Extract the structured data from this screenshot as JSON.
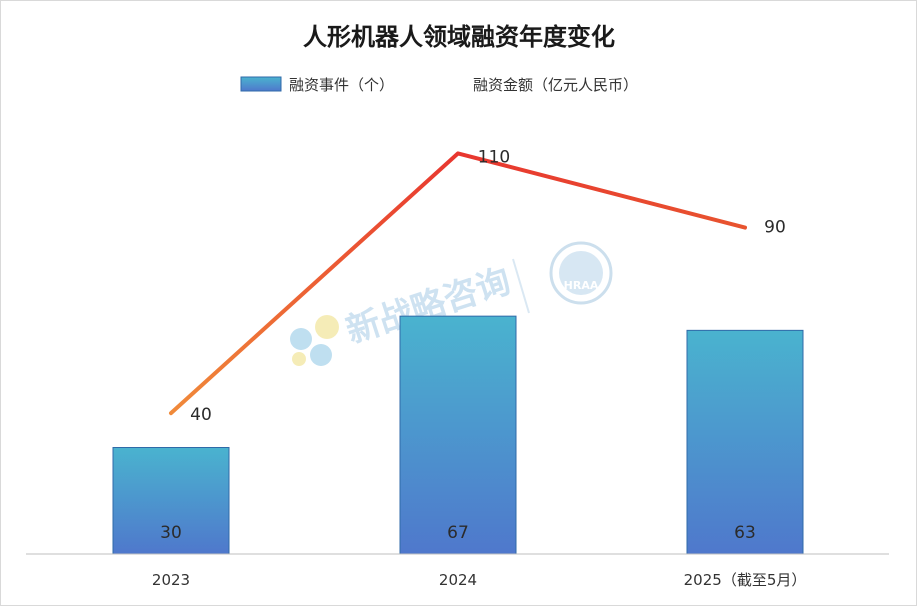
{
  "chart_data": {
    "type": "bar+line",
    "title": "人形机器人领域融资年度变化",
    "categories": [
      "2023",
      "2024",
      "2025（截至5月）"
    ],
    "series": [
      {
        "name": "融资事件（个）",
        "type": "bar",
        "values": [
          30,
          67,
          63
        ],
        "color": "#3a8fc8"
      },
      {
        "name": "融资金额（亿元人民币）",
        "type": "line",
        "values": [
          40,
          110,
          90
        ],
        "color": "#e8542f"
      }
    ],
    "legend_position": "top",
    "grid": false
  },
  "watermark": {
    "text": "新战略咨询",
    "badge": "HRAA"
  }
}
